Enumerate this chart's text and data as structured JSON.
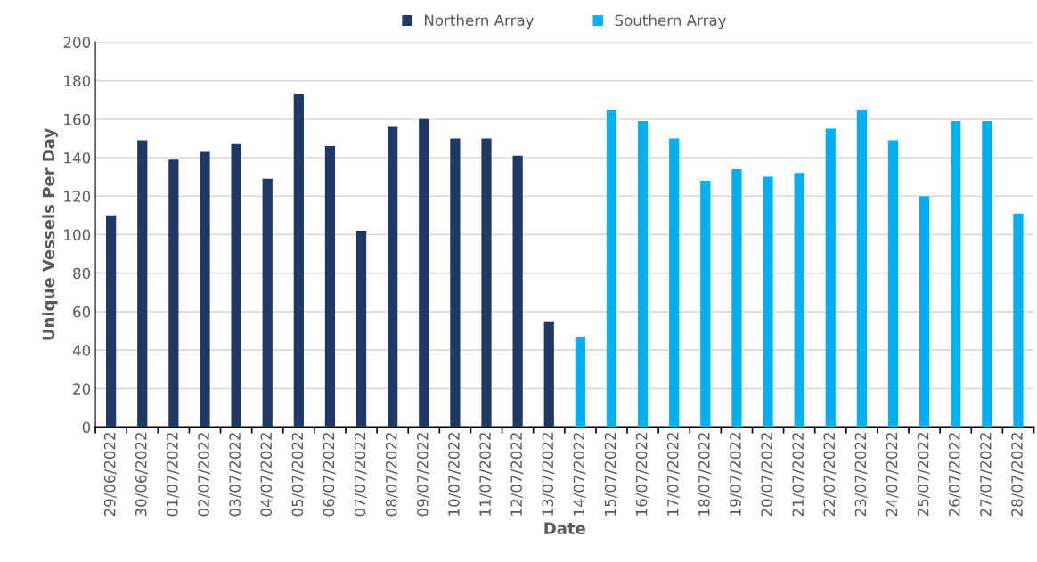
{
  "chart_data": {
    "type": "bar",
    "xlabel": "Date",
    "ylabel": "Unique Vessels Per Day",
    "categories": [
      "29/06/2022",
      "30/06/2022",
      "01/07/2022",
      "02/07/2022",
      "03/07/2022",
      "04/07/2022",
      "05/07/2022",
      "06/07/2022",
      "07/07/2022",
      "08/07/2022",
      "09/07/2022",
      "10/07/2022",
      "11/07/2022",
      "12/07/2022",
      "13/07/2022",
      "14/07/2022",
      "15/07/2022",
      "16/07/2022",
      "17/07/2022",
      "18/07/2022",
      "19/07/2022",
      "20/07/2022",
      "21/07/2022",
      "22/07/2022",
      "23/07/2022",
      "24/07/2022",
      "25/07/2022",
      "26/07/2022",
      "27/07/2022",
      "28/07/2022"
    ],
    "series": [
      {
        "name": "Northern Array",
        "color": "#203864",
        "values": [
          110,
          149,
          139,
          143,
          147,
          129,
          173,
          146,
          102,
          156,
          160,
          150,
          150,
          141,
          55,
          null,
          null,
          null,
          null,
          null,
          null,
          null,
          null,
          null,
          null,
          null,
          null,
          null,
          null,
          null
        ]
      },
      {
        "name": "Southern Array",
        "color": "#00b0f0",
        "values": [
          null,
          null,
          null,
          null,
          null,
          null,
          null,
          null,
          null,
          null,
          null,
          null,
          null,
          null,
          null,
          47,
          165,
          159,
          150,
          128,
          134,
          130,
          132,
          155,
          165,
          149,
          120,
          159,
          159,
          111
        ]
      }
    ],
    "ylim": [
      0,
      200
    ],
    "yticks": [
      0,
      20,
      40,
      60,
      80,
      100,
      120,
      140,
      160,
      180,
      200
    ],
    "grid": "y",
    "legend": "top"
  }
}
